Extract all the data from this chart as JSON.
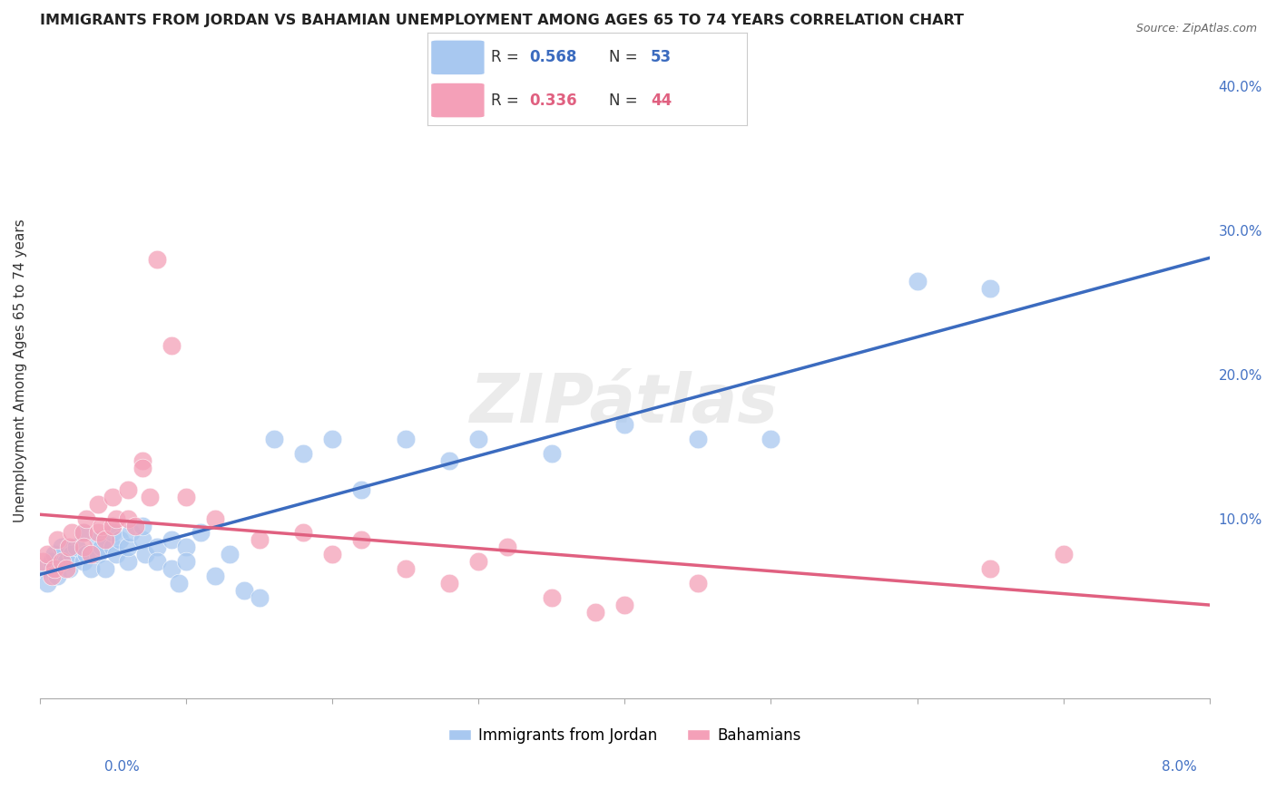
{
  "title": "IMMIGRANTS FROM JORDAN VS BAHAMIAN UNEMPLOYMENT AMONG AGES 65 TO 74 YEARS CORRELATION CHART",
  "source": "Source: ZipAtlas.com",
  "ylabel": "Unemployment Among Ages 65 to 74 years",
  "right_yticks": [
    "",
    "10.0%",
    "20.0%",
    "30.0%",
    "40.0%"
  ],
  "right_ytick_vals": [
    0,
    0.1,
    0.2,
    0.3,
    0.4
  ],
  "xlim": [
    0,
    0.08
  ],
  "ylim": [
    -0.025,
    0.43
  ],
  "legend1_R": "0.568",
  "legend1_N": "53",
  "legend2_R": "0.336",
  "legend2_N": "44",
  "jordan_color": "#A8C8F0",
  "bahamian_color": "#F4A0B8",
  "jordan_line_color": "#3B6BBF",
  "bahamian_line_color": "#E06080",
  "jordan_x": [
    0.0002,
    0.0005,
    0.0008,
    0.001,
    0.0012,
    0.0015,
    0.0018,
    0.002,
    0.0022,
    0.0025,
    0.003,
    0.003,
    0.0032,
    0.0035,
    0.004,
    0.004,
    0.0042,
    0.0045,
    0.005,
    0.005,
    0.0052,
    0.0055,
    0.006,
    0.006,
    0.0062,
    0.007,
    0.007,
    0.0072,
    0.008,
    0.008,
    0.009,
    0.009,
    0.0095,
    0.01,
    0.01,
    0.011,
    0.012,
    0.013,
    0.014,
    0.015,
    0.016,
    0.018,
    0.02,
    0.022,
    0.025,
    0.028,
    0.03,
    0.035,
    0.04,
    0.045,
    0.05,
    0.06,
    0.065
  ],
  "jordan_y": [
    0.065,
    0.055,
    0.07,
    0.075,
    0.06,
    0.08,
    0.07,
    0.065,
    0.075,
    0.08,
    0.09,
    0.07,
    0.075,
    0.065,
    0.085,
    0.075,
    0.08,
    0.065,
    0.08,
    0.09,
    0.075,
    0.085,
    0.07,
    0.08,
    0.09,
    0.085,
    0.095,
    0.075,
    0.08,
    0.07,
    0.085,
    0.065,
    0.055,
    0.08,
    0.07,
    0.09,
    0.06,
    0.075,
    0.05,
    0.045,
    0.155,
    0.145,
    0.155,
    0.12,
    0.155,
    0.14,
    0.155,
    0.145,
    0.165,
    0.155,
    0.155,
    0.265,
    0.26
  ],
  "bahamian_x": [
    0.0002,
    0.0005,
    0.0008,
    0.001,
    0.0012,
    0.0015,
    0.0018,
    0.002,
    0.0022,
    0.003,
    0.003,
    0.0032,
    0.0035,
    0.004,
    0.004,
    0.0042,
    0.0045,
    0.005,
    0.005,
    0.0052,
    0.006,
    0.006,
    0.0065,
    0.007,
    0.007,
    0.0075,
    0.008,
    0.009,
    0.01,
    0.012,
    0.015,
    0.018,
    0.02,
    0.022,
    0.025,
    0.028,
    0.03,
    0.032,
    0.035,
    0.038,
    0.04,
    0.045,
    0.065,
    0.07
  ],
  "bahamian_y": [
    0.07,
    0.075,
    0.06,
    0.065,
    0.085,
    0.07,
    0.065,
    0.08,
    0.09,
    0.09,
    0.08,
    0.1,
    0.075,
    0.09,
    0.11,
    0.095,
    0.085,
    0.095,
    0.115,
    0.1,
    0.12,
    0.1,
    0.095,
    0.14,
    0.135,
    0.115,
    0.28,
    0.22,
    0.115,
    0.1,
    0.085,
    0.09,
    0.075,
    0.085,
    0.065,
    0.055,
    0.07,
    0.08,
    0.045,
    0.035,
    0.04,
    0.055,
    0.065,
    0.075
  ],
  "background_color": "#FFFFFF",
  "grid_color": "#DDDDDD"
}
